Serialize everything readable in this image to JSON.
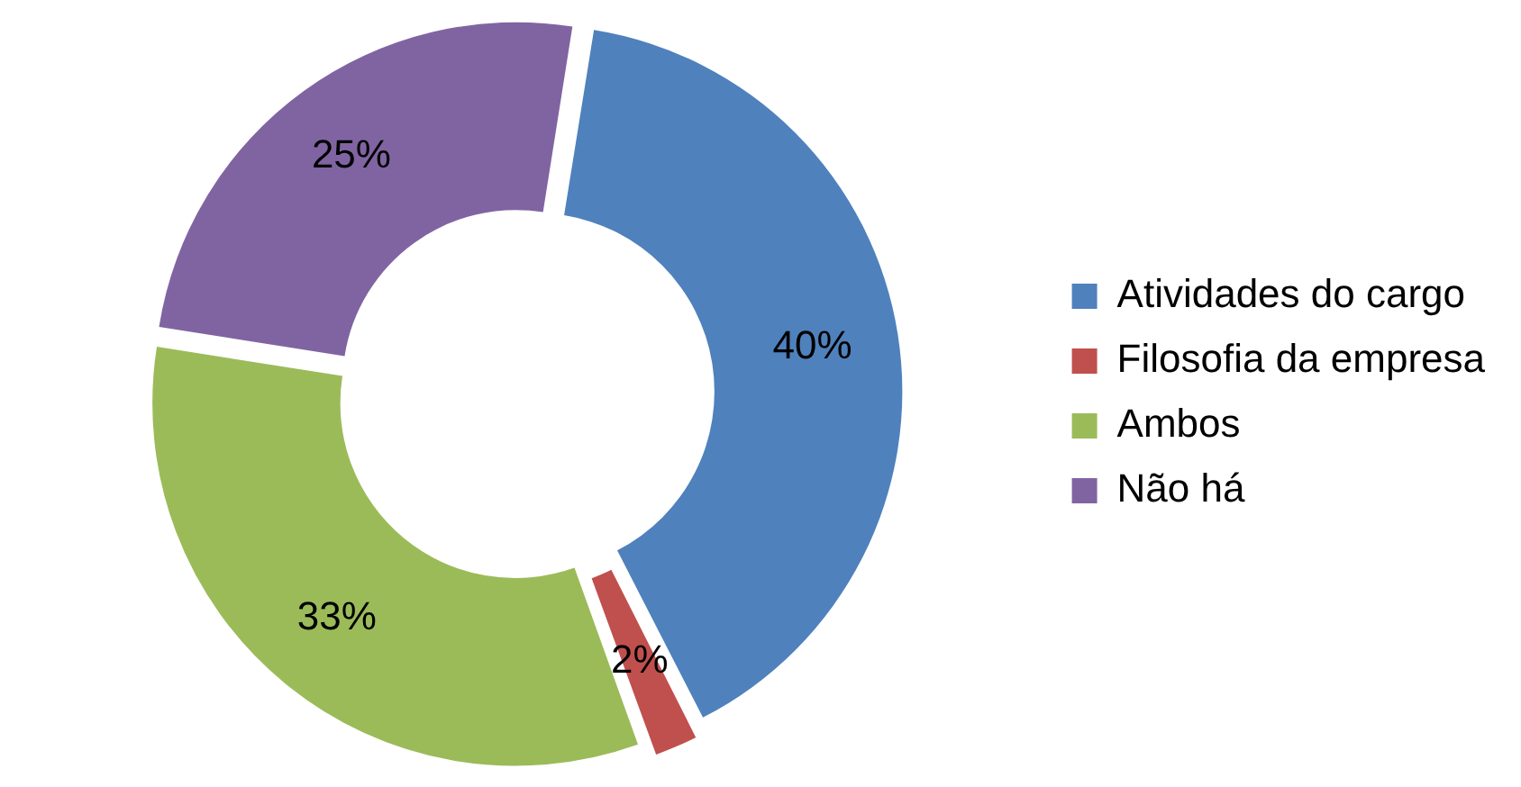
{
  "chart_data": {
    "type": "donut",
    "categories": [
      "Atividades do cargo",
      "Filosofia da empresa",
      "Ambos",
      "Não há"
    ],
    "values": [
      40,
      2,
      33,
      25
    ],
    "colors": [
      "#4f81bd",
      "#c0504d",
      "#9bbb59",
      "#8064a2"
    ],
    "value_labels": [
      "40%",
      "2%",
      "33%",
      "25%"
    ],
    "legend": "right"
  }
}
